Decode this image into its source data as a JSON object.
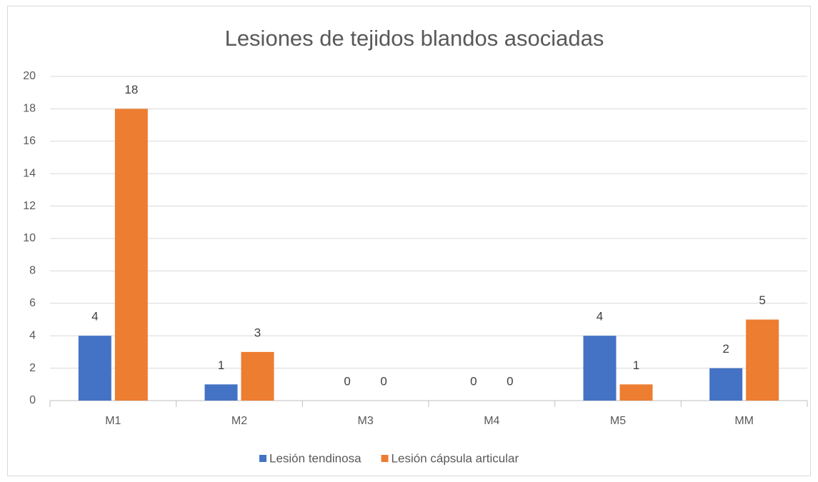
{
  "chart_data": {
    "type": "bar",
    "title": "Lesiones de tejidos blandos asociadas",
    "categories": [
      "M1",
      "M2",
      "M3",
      "M4",
      "M5",
      "MM"
    ],
    "series": [
      {
        "name": "Lesión tendinosa",
        "color": "#4472c4",
        "values": [
          4,
          1,
          0,
          0,
          4,
          2
        ]
      },
      {
        "name": "Lesión cápsula articular",
        "color": "#ed7d31",
        "values": [
          18,
          3,
          0,
          0,
          1,
          5
        ]
      }
    ],
    "ylim": [
      0,
      20
    ],
    "yticks": [
      0,
      2,
      4,
      6,
      8,
      10,
      12,
      14,
      16,
      18,
      20
    ],
    "grid": true,
    "legend": "bottom"
  }
}
